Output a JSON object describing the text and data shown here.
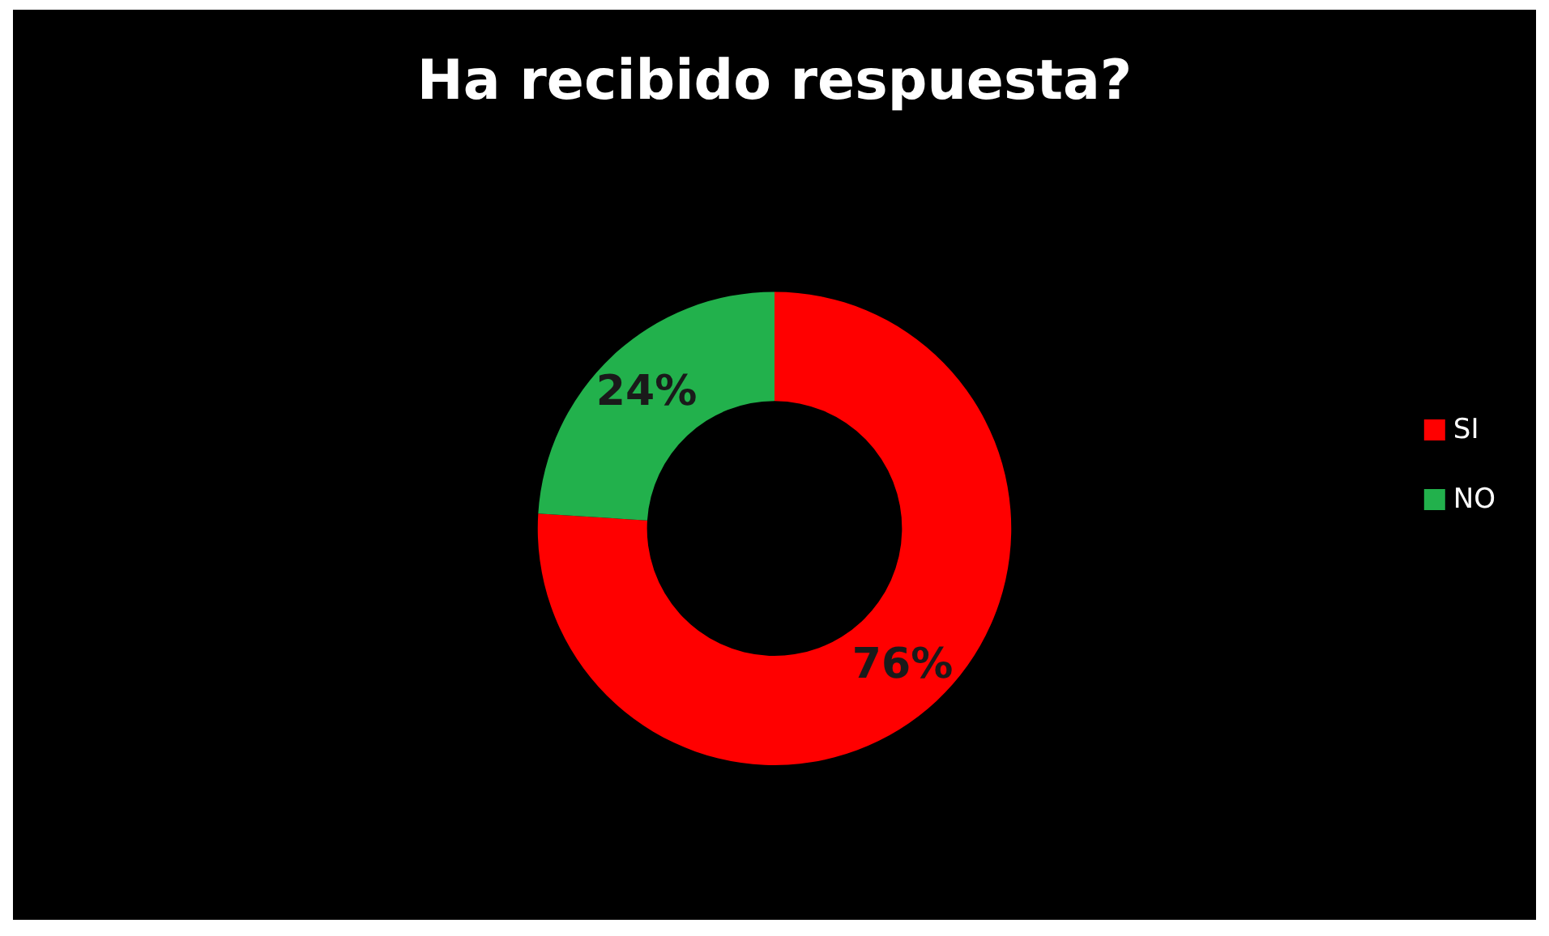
{
  "chart_data": {
    "type": "donut",
    "title": "Ha recibido respuesta?",
    "categories": [
      "SI",
      "NO"
    ],
    "values": [
      76,
      24
    ],
    "colors": [
      "#ff0000",
      "#22b14c"
    ],
    "value_labels": [
      "76%",
      "24%"
    ],
    "legend": "right"
  }
}
